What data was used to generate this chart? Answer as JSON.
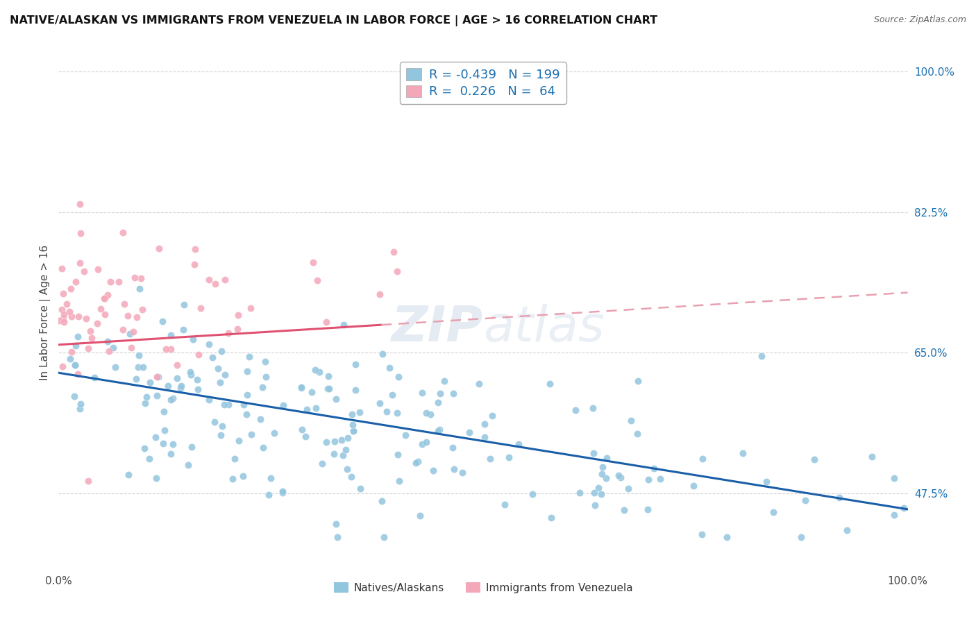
{
  "title": "NATIVE/ALASKAN VS IMMIGRANTS FROM VENEZUELA IN LABOR FORCE | AGE > 16 CORRELATION CHART",
  "source": "Source: ZipAtlas.com",
  "ylabel": "In Labor Force | Age > 16",
  "yticks": [
    "47.5%",
    "65.0%",
    "82.5%",
    "100.0%"
  ],
  "ytick_vals": [
    0.475,
    0.65,
    0.825,
    1.0
  ],
  "ylim_low": 0.38,
  "ylim_high": 1.02,
  "legend_label1": "Natives/Alaskans",
  "legend_label2": "Immigrants from Venezuela",
  "R1": "-0.439",
  "N1": "199",
  "R2": "0.226",
  "N2": "64",
  "color_blue": "#92c5de",
  "color_pink": "#f4a7b9",
  "line_blue": "#1a5fa8",
  "line_pink": "#e05070",
  "line_pink_dash": "#e8a0b0"
}
